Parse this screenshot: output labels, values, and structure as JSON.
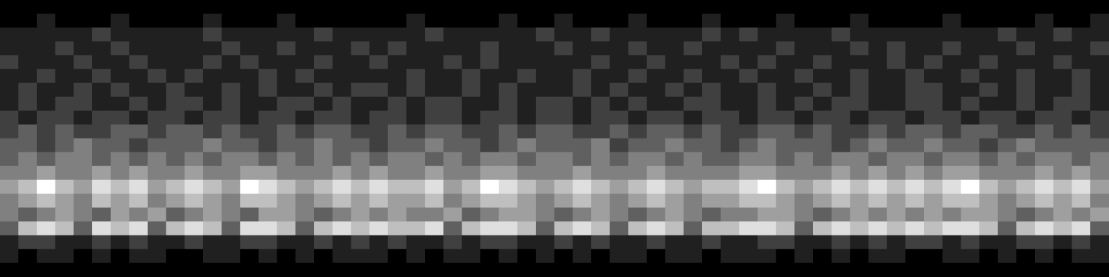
{
  "chart_data": {
    "type": "heatmap",
    "tick_labels": false,
    "grid": false,
    "cells": [
      [
        0,
        0,
        0,
        0,
        0,
        0,
        0,
        0,
        0,
        0,
        0,
        0,
        0,
        0,
        0,
        0,
        0,
        0,
        0,
        0,
        0,
        0,
        0,
        0,
        0,
        0,
        0,
        0,
        0,
        0,
        0,
        0,
        0,
        0,
        0,
        0,
        0,
        0,
        0,
        0,
        0,
        0,
        0,
        0,
        0,
        0,
        0,
        0,
        0,
        0,
        0,
        0,
        0,
        0,
        0,
        0,
        0,
        0,
        0,
        0
      ],
      [
        0,
        0,
        1,
        0,
        0,
        0,
        1,
        0,
        0,
        0,
        0,
        1,
        0,
        0,
        0,
        1,
        0,
        0,
        0,
        0,
        0,
        0,
        1,
        0,
        0,
        0,
        0,
        1,
        0,
        0,
        1,
        0,
        0,
        0,
        1,
        0,
        0,
        0,
        1,
        0,
        0,
        0,
        1,
        0,
        0,
        0,
        1,
        0,
        0,
        0,
        0,
        1,
        0,
        0,
        0,
        0,
        1,
        0,
        0,
        1
      ],
      [
        1,
        1,
        1,
        1,
        1,
        2,
        1,
        1,
        1,
        1,
        1,
        2,
        1,
        1,
        1,
        1,
        1,
        2,
        1,
        1,
        1,
        1,
        1,
        2,
        1,
        1,
        1,
        1,
        1,
        2,
        1,
        1,
        2,
        1,
        1,
        1,
        1,
        1,
        2,
        1,
        2,
        1,
        1,
        1,
        1,
        2,
        1,
        1,
        1,
        1,
        1,
        1,
        1,
        1,
        2,
        1,
        1,
        2,
        1,
        1
      ],
      [
        1,
        1,
        1,
        2,
        1,
        1,
        2,
        1,
        1,
        1,
        1,
        1,
        2,
        1,
        1,
        2,
        1,
        1,
        1,
        2,
        1,
        2,
        1,
        1,
        1,
        1,
        2,
        1,
        1,
        1,
        2,
        1,
        1,
        1,
        2,
        1,
        1,
        2,
        1,
        1,
        1,
        1,
        2,
        1,
        1,
        1,
        2,
        1,
        2,
        1,
        1,
        2,
        1,
        1,
        1,
        2,
        1,
        1,
        1,
        2
      ],
      [
        2,
        1,
        1,
        1,
        2,
        1,
        1,
        2,
        1,
        1,
        1,
        2,
        1,
        2,
        1,
        1,
        1,
        2,
        1,
        1,
        2,
        1,
        1,
        1,
        2,
        1,
        2,
        1,
        1,
        1,
        1,
        1,
        2,
        1,
        1,
        2,
        1,
        1,
        1,
        2,
        1,
        2,
        1,
        1,
        2,
        1,
        1,
        1,
        2,
        1,
        2,
        1,
        1,
        2,
        1,
        1,
        1,
        2,
        1,
        1
      ],
      [
        1,
        1,
        2,
        1,
        1,
        2,
        1,
        1,
        2,
        1,
        2,
        1,
        1,
        1,
        2,
        1,
        2,
        1,
        1,
        1,
        1,
        1,
        2,
        1,
        1,
        2,
        1,
        1,
        2,
        1,
        1,
        2,
        1,
        1,
        2,
        1,
        1,
        2,
        1,
        1,
        2,
        1,
        1,
        2,
        1,
        1,
        2,
        1,
        1,
        2,
        1,
        1,
        2,
        1,
        1,
        2,
        1,
        1,
        2,
        1
      ],
      [
        1,
        2,
        1,
        1,
        2,
        1,
        2,
        1,
        1,
        2,
        1,
        1,
        2,
        1,
        2,
        1,
        1,
        2,
        1,
        2,
        2,
        1,
        2,
        1,
        1,
        2,
        1,
        2,
        1,
        1,
        1,
        2,
        1,
        2,
        1,
        1,
        2,
        1,
        2,
        1,
        1,
        2,
        1,
        1,
        2,
        1,
        2,
        1,
        1,
        2,
        2,
        1,
        1,
        2,
        1,
        2,
        1,
        1,
        2,
        1
      ],
      [
        1,
        2,
        1,
        2,
        2,
        1,
        1,
        2,
        1,
        2,
        2,
        1,
        2,
        1,
        1,
        2,
        2,
        1,
        2,
        1,
        1,
        2,
        1,
        2,
        2,
        1,
        1,
        2,
        1,
        2,
        2,
        1,
        2,
        1,
        2,
        1,
        1,
        2,
        2,
        1,
        1,
        2,
        1,
        2,
        1,
        2,
        2,
        1,
        1,
        2,
        2,
        1,
        2,
        1,
        1,
        2,
        1,
        2,
        2,
        1
      ],
      [
        2,
        1,
        2,
        2,
        1,
        2,
        2,
        1,
        2,
        2,
        1,
        2,
        2,
        1,
        2,
        2,
        1,
        2,
        2,
        1,
        2,
        2,
        1,
        2,
        2,
        1,
        2,
        2,
        1,
        2,
        2,
        1,
        2,
        2,
        1,
        2,
        2,
        1,
        2,
        2,
        1,
        2,
        2,
        1,
        2,
        2,
        1,
        2,
        2,
        1,
        2,
        2,
        1,
        2,
        2,
        1,
        2,
        2,
        1,
        2
      ],
      [
        2,
        3,
        2,
        3,
        2,
        2,
        3,
        3,
        2,
        3,
        3,
        2,
        3,
        2,
        2,
        3,
        2,
        3,
        3,
        2,
        2,
        3,
        2,
        3,
        3,
        2,
        2,
        3,
        2,
        3,
        3,
        2,
        2,
        3,
        2,
        3,
        3,
        2,
        3,
        2,
        2,
        3,
        3,
        2,
        3,
        2,
        2,
        3,
        2,
        3,
        3,
        2,
        3,
        3,
        2,
        2,
        3,
        2,
        3,
        2
      ],
      [
        3,
        3,
        2,
        3,
        4,
        3,
        3,
        2,
        3,
        3,
        3,
        4,
        3,
        3,
        2,
        3,
        3,
        4,
        3,
        3,
        2,
        3,
        3,
        4,
        3,
        3,
        2,
        3,
        4,
        3,
        3,
        3,
        4,
        2,
        3,
        3,
        4,
        3,
        3,
        2,
        3,
        4,
        3,
        3,
        3,
        2,
        3,
        4,
        3,
        3,
        4,
        3,
        3,
        2,
        3,
        4,
        3,
        3,
        3,
        3
      ],
      [
        3,
        4,
        3,
        4,
        4,
        3,
        4,
        3,
        4,
        3,
        4,
        3,
        4,
        4,
        3,
        4,
        3,
        4,
        3,
        4,
        3,
        4,
        4,
        3,
        4,
        3,
        4,
        4,
        3,
        4,
        4,
        3,
        4,
        3,
        4,
        4,
        3,
        4,
        3,
        3,
        4,
        4,
        3,
        4,
        3,
        4,
        4,
        3,
        4,
        4,
        3,
        4,
        4,
        3,
        4,
        3,
        4,
        4,
        3,
        4
      ],
      [
        4,
        4,
        5,
        4,
        4,
        5,
        4,
        5,
        4,
        4,
        5,
        4,
        4,
        5,
        5,
        4,
        4,
        4,
        5,
        4,
        5,
        4,
        4,
        5,
        4,
        4,
        5,
        5,
        4,
        4,
        4,
        5,
        4,
        4,
        4,
        5,
        4,
        4,
        4,
        4,
        5,
        5,
        4,
        4,
        4,
        5,
        4,
        5,
        4,
        5,
        4,
        5,
        5,
        4,
        4,
        4,
        5,
        4,
        5,
        4
      ],
      [
        5,
        6,
        8,
        6,
        5,
        7,
        6,
        7,
        5,
        6,
        7,
        6,
        5,
        8,
        7,
        6,
        5,
        6,
        7,
        6,
        7,
        6,
        6,
        7,
        5,
        6,
        8,
        7,
        6,
        5,
        6,
        7,
        6,
        5,
        6,
        7,
        6,
        5,
        6,
        6,
        7,
        8,
        6,
        5,
        6,
        7,
        6,
        7,
        6,
        7,
        6,
        7,
        8,
        6,
        5,
        6,
        7,
        6,
        7,
        5
      ],
      [
        4,
        5,
        6,
        5,
        4,
        6,
        5,
        6,
        4,
        5,
        6,
        5,
        4,
        6,
        6,
        5,
        4,
        5,
        6,
        5,
        6,
        5,
        5,
        6,
        4,
        5,
        6,
        6,
        5,
        4,
        5,
        6,
        5,
        4,
        5,
        6,
        5,
        4,
        5,
        5,
        6,
        6,
        5,
        4,
        5,
        6,
        5,
        6,
        5,
        6,
        5,
        6,
        6,
        5,
        4,
        5,
        6,
        5,
        6,
        4
      ],
      [
        4,
        3,
        4,
        5,
        4,
        3,
        5,
        4,
        5,
        3,
        4,
        5,
        4,
        3,
        5,
        5,
        4,
        3,
        4,
        5,
        4,
        5,
        4,
        4,
        5,
        3,
        4,
        5,
        5,
        4,
        3,
        4,
        5,
        4,
        3,
        4,
        5,
        4,
        3,
        4,
        4,
        5,
        5,
        4,
        3,
        4,
        5,
        4,
        5,
        4,
        5,
        4,
        5,
        5,
        4,
        3,
        4,
        5,
        4,
        5
      ],
      [
        3,
        6,
        7,
        6,
        3,
        7,
        6,
        7,
        3,
        6,
        7,
        6,
        3,
        7,
        7,
        6,
        3,
        6,
        7,
        6,
        7,
        6,
        6,
        7,
        3,
        6,
        7,
        7,
        6,
        3,
        6,
        7,
        6,
        3,
        6,
        7,
        6,
        3,
        6,
        6,
        7,
        7,
        6,
        3,
        6,
        7,
        6,
        7,
        6,
        7,
        6,
        7,
        7,
        6,
        3,
        6,
        7,
        6,
        7,
        3
      ],
      [
        1,
        2,
        2,
        1,
        1,
        2,
        1,
        2,
        1,
        1,
        2,
        1,
        1,
        2,
        2,
        1,
        1,
        2,
        1,
        2,
        1,
        2,
        1,
        1,
        2,
        1,
        2,
        2,
        1,
        1,
        2,
        1,
        2,
        1,
        1,
        2,
        1,
        1,
        2,
        1,
        1,
        2,
        2,
        1,
        1,
        2,
        1,
        2,
        1,
        2,
        2,
        1,
        2,
        1,
        1,
        2,
        2,
        1,
        2,
        1
      ],
      [
        1,
        0,
        1,
        1,
        0,
        1,
        0,
        1,
        1,
        0,
        0,
        1,
        1,
        0,
        1,
        0,
        1,
        0,
        1,
        1,
        1,
        0,
        1,
        0,
        1,
        1,
        0,
        1,
        0,
        1,
        0,
        1,
        0,
        1,
        1,
        0,
        1,
        1,
        0,
        1,
        1,
        1,
        0,
        1,
        0,
        1,
        0,
        1,
        1,
        0,
        0,
        1,
        1,
        0,
        1,
        0,
        1,
        0,
        1,
        1
      ],
      [
        0,
        0,
        0,
        0,
        0,
        0,
        0,
        0,
        0,
        0,
        0,
        0,
        0,
        0,
        0,
        0,
        0,
        0,
        0,
        0,
        0,
        0,
        0,
        0,
        0,
        0,
        0,
        0,
        0,
        0,
        0,
        0,
        0,
        0,
        0,
        0,
        0,
        0,
        0,
        0,
        0,
        0,
        0,
        0,
        0,
        0,
        0,
        0,
        0,
        0,
        0,
        0,
        0,
        0,
        0,
        0,
        0,
        0,
        0,
        0
      ]
    ]
  }
}
